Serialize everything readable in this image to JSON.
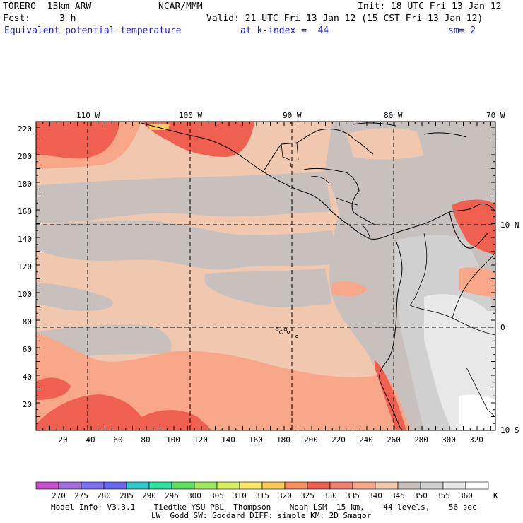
{
  "header": {
    "model": "TORERO  15km ARW",
    "center": "NCAR/MMM",
    "init": "Init: 18 UTC Fri 13 Jan 12",
    "fcst_label": "Fcst:",
    "fcst_value": "3 h",
    "valid": "Valid: 21 UTC Fri 13 Jan 12 (15 CST Fri 13 Jan 12)",
    "field": "Equivalent potential temperature",
    "level": "at k-index =  44",
    "smoothing": "sm= 2"
  },
  "map": {
    "top_lon_labels": [
      "110 W",
      "100 W",
      "90 W",
      "80 W",
      "70 W"
    ],
    "right_lat_labels": [
      "10 N",
      "0",
      "10 S"
    ],
    "y_grid_labels": [
      "220",
      "200",
      "180",
      "160",
      "140",
      "120",
      "100",
      "80",
      "60",
      "40",
      "20"
    ],
    "x_grid_labels": [
      "20",
      "40",
      "60",
      "80",
      "100",
      "120",
      "140",
      "160",
      "180",
      "200",
      "220",
      "240",
      "260",
      "280",
      "300",
      "320"
    ]
  },
  "legend": {
    "unit": "K",
    "labels": [
      "270",
      "275",
      "280",
      "285",
      "290",
      "295",
      "300",
      "305",
      "310",
      "315",
      "320",
      "325",
      "330",
      "335",
      "340",
      "345",
      "350",
      "355",
      "360"
    ],
    "colors": [
      "#c850d0",
      "#a070e0",
      "#8070f0",
      "#6868f0",
      "#30c8c8",
      "#30e0a0",
      "#60e060",
      "#a0e860",
      "#d8f060",
      "#f8e868",
      "#f8c858",
      "#f89060",
      "#f06050",
      "#f08070",
      "#f8a888",
      "#f0c8b0",
      "#c8c0bc",
      "#d0d0d0",
      "#e8e8e8",
      "#ffffff"
    ]
  },
  "footer": {
    "line1": "Model Info: V3.3.1    Tiedtke YSU PBL  Thompson    Noah LSM  15 km,    44 levels,    56 sec",
    "line2": "LW: Godd SW: Goddard DIFF: simple KM: 2D Smagor"
  }
}
